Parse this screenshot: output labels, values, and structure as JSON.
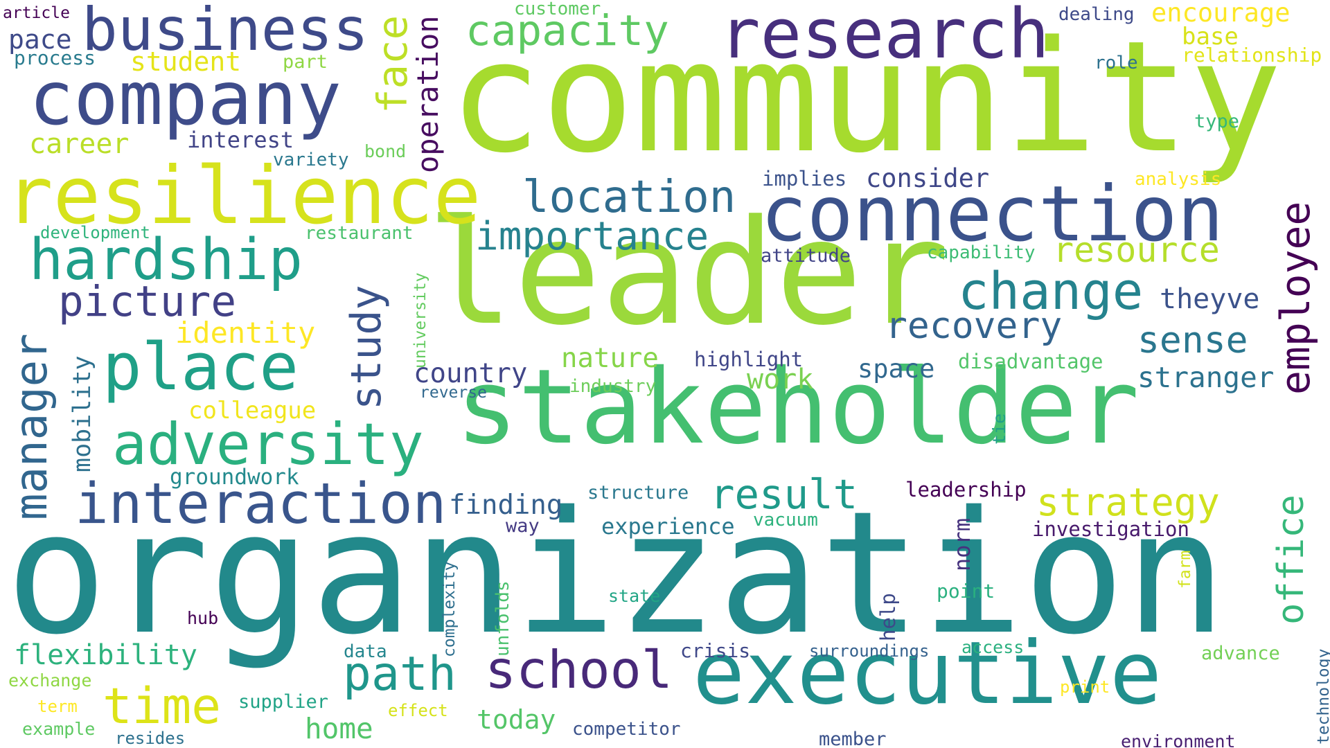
{
  "words": [
    {
      "text": "community",
      "color": "#a6db2e"
    },
    {
      "text": "organization",
      "color": "#22898b"
    },
    {
      "text": "leader",
      "color": "#9bd93b"
    },
    {
      "text": "stakeholder",
      "color": "#44bf70"
    },
    {
      "text": "executive",
      "color": "#21908d"
    },
    {
      "text": "connection",
      "color": "#3b528b"
    },
    {
      "text": "resilience",
      "color": "#d6e21c"
    },
    {
      "text": "company",
      "color": "#3e4c8a"
    },
    {
      "text": "research",
      "color": "#472f7d"
    },
    {
      "text": "business",
      "color": "#3e4a89"
    },
    {
      "text": "place",
      "color": "#1fa087"
    },
    {
      "text": "adversity",
      "color": "#2ab07f"
    },
    {
      "text": "interaction",
      "color": "#39558c"
    },
    {
      "text": "hardship",
      "color": "#1f9e89"
    },
    {
      "text": "change",
      "color": "#25838e"
    },
    {
      "text": "school",
      "color": "#482979"
    },
    {
      "text": "time",
      "color": "#dde318"
    },
    {
      "text": "path",
      "color": "#1f968b"
    },
    {
      "text": "picture",
      "color": "#424186"
    },
    {
      "text": "location",
      "color": "#2f6c8e"
    },
    {
      "text": "importance",
      "color": "#26828e"
    },
    {
      "text": "capacity",
      "color": "#5ec962"
    },
    {
      "text": "manager",
      "color": "#31668e"
    },
    {
      "text": "study",
      "color": "#3a538b"
    },
    {
      "text": "face",
      "color": "#bddf26"
    },
    {
      "text": "employee",
      "color": "#440154"
    },
    {
      "text": "office",
      "color": "#35b779"
    },
    {
      "text": "strategy",
      "color": "#d0e11c"
    },
    {
      "text": "result",
      "color": "#1f9a8a"
    },
    {
      "text": "recovery",
      "color": "#33638d"
    },
    {
      "text": "resource",
      "color": "#b5de2b"
    },
    {
      "text": "sense",
      "color": "#2a768e"
    },
    {
      "text": "stranger",
      "color": "#2c728e"
    },
    {
      "text": "theyve",
      "color": "#3b528b"
    },
    {
      "text": "operation",
      "color": "#470d60"
    },
    {
      "text": "identity",
      "color": "#fde725"
    },
    {
      "text": "student",
      "color": "#e5e419"
    },
    {
      "text": "pace",
      "color": "#3e4a89"
    },
    {
      "text": "flexibility",
      "color": "#2db27d"
    },
    {
      "text": "mobility",
      "color": "#2d708e"
    },
    {
      "text": "finding",
      "color": "#355f8d"
    },
    {
      "text": "country",
      "color": "#404588"
    },
    {
      "text": "nature",
      "color": "#86d549"
    },
    {
      "text": "work",
      "color": "#7ad151"
    },
    {
      "text": "space",
      "color": "#31688e"
    },
    {
      "text": "home",
      "color": "#52c569"
    },
    {
      "text": "today",
      "color": "#54c568"
    },
    {
      "text": "career",
      "color": "#bade28"
    },
    {
      "text": "interest",
      "color": "#414487"
    },
    {
      "text": "colleague",
      "color": "#f1e51d"
    },
    {
      "text": "groundwork",
      "color": "#238a8d"
    },
    {
      "text": "consider",
      "color": "#3f4788"
    },
    {
      "text": "norm",
      "color": "#46327e"
    },
    {
      "text": "encourage",
      "color": "#fde725"
    },
    {
      "text": "base",
      "color": "#d8e219"
    },
    {
      "text": "relationship",
      "color": "#e2e418"
    },
    {
      "text": "article",
      "color": "#440154"
    },
    {
      "text": "process",
      "color": "#297b8e"
    },
    {
      "text": "part",
      "color": "#8fd744"
    },
    {
      "text": "customer",
      "color": "#5ec962"
    },
    {
      "text": "dealing",
      "color": "#3e4a89"
    },
    {
      "text": "role",
      "color": "#2d718e"
    },
    {
      "text": "type",
      "color": "#35b779"
    },
    {
      "text": "analysis",
      "color": "#fde725"
    },
    {
      "text": "implies",
      "color": "#3b528b"
    },
    {
      "text": "variety",
      "color": "#2a788e"
    },
    {
      "text": "bond",
      "color": "#6ccd5a"
    },
    {
      "text": "development",
      "color": "#2fb47c"
    },
    {
      "text": "restaurant",
      "color": "#4ac16d"
    },
    {
      "text": "attitude",
      "color": "#414487"
    },
    {
      "text": "capability",
      "color": "#3dbc74"
    },
    {
      "text": "university",
      "color": "#63cb5f"
    },
    {
      "text": "highlight",
      "color": "#404688"
    },
    {
      "text": "disadvantage",
      "color": "#52c569"
    },
    {
      "text": "industry",
      "color": "#6ccd5a"
    },
    {
      "text": "reverse",
      "color": "#31688e"
    },
    {
      "text": "structure",
      "color": "#2a788e"
    },
    {
      "text": "experience",
      "color": "#2a788e"
    },
    {
      "text": "vacuum",
      "color": "#2db27d"
    },
    {
      "text": "leadership",
      "color": "#440154"
    },
    {
      "text": "investigation",
      "color": "#481a6c"
    },
    {
      "text": "way",
      "color": "#443a83"
    },
    {
      "text": "tie",
      "color": "#1fa088"
    },
    {
      "text": "complexity",
      "color": "#2e6f8e"
    },
    {
      "text": "unfolds",
      "color": "#4ac16d"
    },
    {
      "text": "help",
      "color": "#3e4989"
    },
    {
      "text": "point",
      "color": "#2ab07f"
    },
    {
      "text": "farm",
      "color": "#d2e21b"
    },
    {
      "text": "state",
      "color": "#21a585"
    },
    {
      "text": "hub",
      "color": "#440154"
    },
    {
      "text": "data",
      "color": "#24868e"
    },
    {
      "text": "crisis",
      "color": "#3f4889"
    },
    {
      "text": "surroundings",
      "color": "#34618d"
    },
    {
      "text": "access",
      "color": "#2ab07f"
    },
    {
      "text": "advance",
      "color": "#73d056"
    },
    {
      "text": "technology",
      "color": "#33638d"
    },
    {
      "text": "exchange",
      "color": "#8fd744"
    },
    {
      "text": "term",
      "color": "#fde725"
    },
    {
      "text": "supplier",
      "color": "#20a386"
    },
    {
      "text": "effect",
      "color": "#d5e21a"
    },
    {
      "text": "print",
      "color": "#fde725"
    },
    {
      "text": "example",
      "color": "#5ec962"
    },
    {
      "text": "resides",
      "color": "#2d718e"
    },
    {
      "text": "competitor",
      "color": "#3b528b"
    },
    {
      "text": "member",
      "color": "#3b528b"
    },
    {
      "text": "environment",
      "color": "#481f71"
    }
  ]
}
